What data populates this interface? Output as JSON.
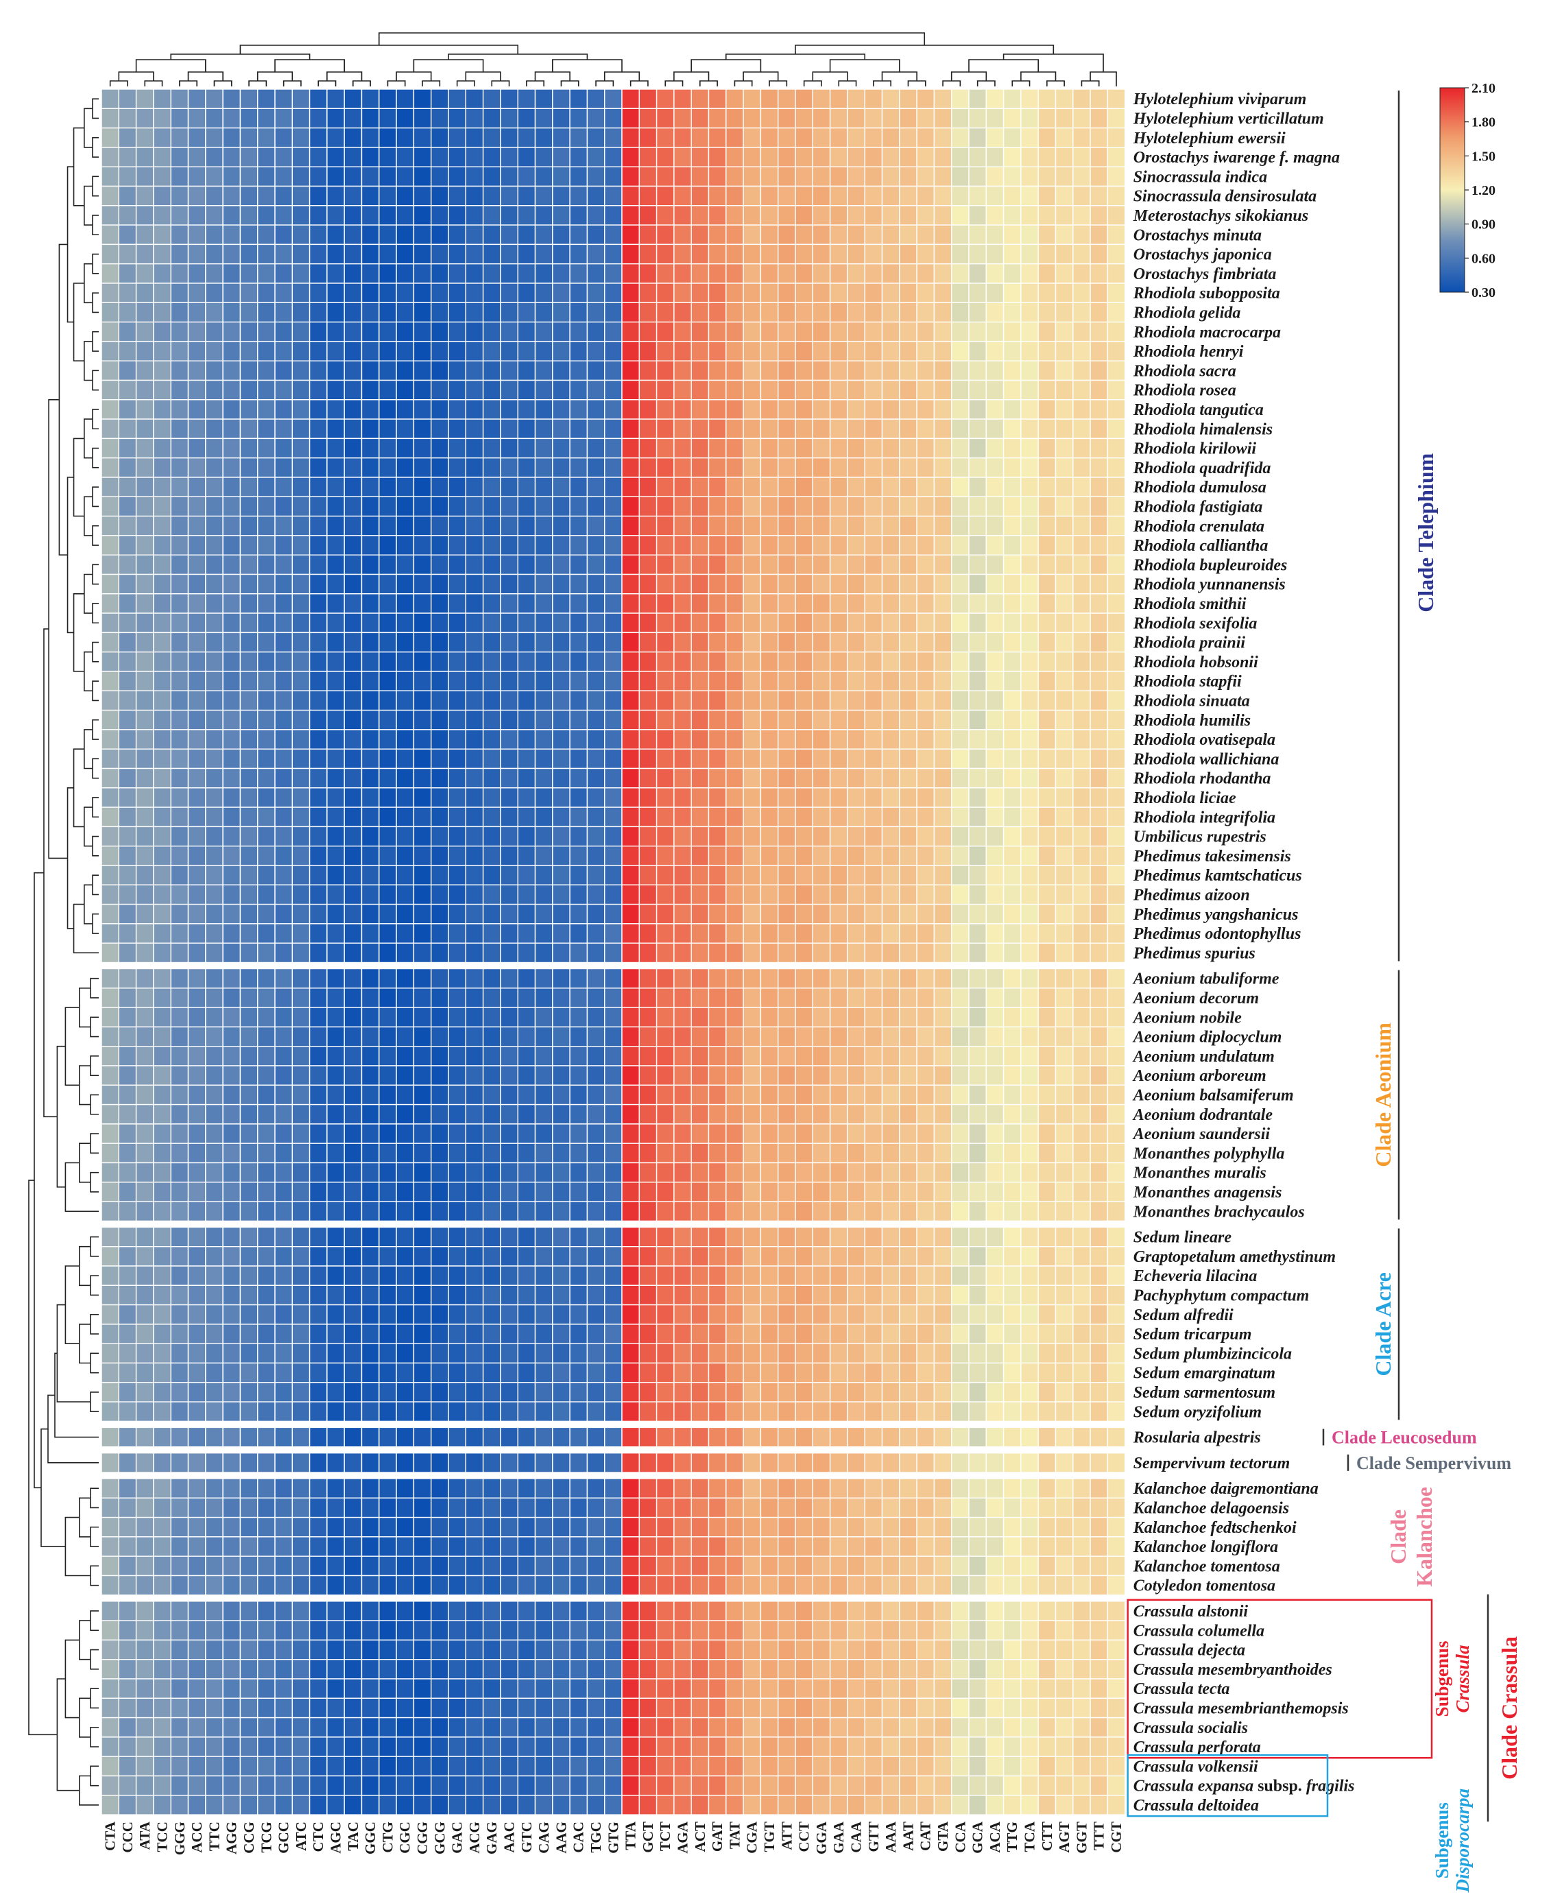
{
  "chart_data": {
    "type": "heatmap",
    "title": "",
    "colormap": {
      "min": 0.3,
      "max": 2.1,
      "stops": [
        "#0b4fb2",
        "#6f8fb8",
        "#f7efb6",
        "#f0a06e",
        "#e8252b"
      ],
      "ticks": [
        "2.10",
        "1.80",
        "1.50",
        "1.20",
        "0.90",
        "0.60",
        "0.30"
      ]
    },
    "columns": [
      "CTA",
      "CCC",
      "ATA",
      "TCC",
      "GGG",
      "ACC",
      "TTC",
      "AGG",
      "CCG",
      "TCG",
      "GCC",
      "ATC",
      "CTC",
      "AGC",
      "TAC",
      "GGC",
      "CTG",
      "CGC",
      "CGG",
      "GCG",
      "GAC",
      "ACG",
      "GAG",
      "AAC",
      "GTC",
      "CAG",
      "AAG",
      "CAC",
      "TGC",
      "GTG",
      "TTA",
      "GCT",
      "TCT",
      "AGA",
      "ACT",
      "GAT",
      "TAT",
      "CGA",
      "TGT",
      "ATT",
      "CCT",
      "GGA",
      "GAA",
      "CAA",
      "GTT",
      "AAA",
      "AAT",
      "CAT",
      "GTA",
      "CCA",
      "GCA",
      "ACA",
      "TTG",
      "TCA",
      "CTT",
      "AGT",
      "GGT",
      "TTT",
      "CGT"
    ],
    "column_rscu": [
      0.9,
      0.8,
      0.82,
      0.8,
      0.72,
      0.7,
      0.68,
      0.64,
      0.62,
      0.58,
      0.56,
      0.55,
      0.4,
      0.38,
      0.37,
      0.36,
      0.35,
      0.34,
      0.33,
      0.36,
      0.4,
      0.42,
      0.44,
      0.46,
      0.45,
      0.48,
      0.5,
      0.49,
      0.5,
      0.52,
      2.05,
      1.92,
      1.85,
      1.8,
      1.78,
      1.75,
      1.68,
      1.55,
      1.58,
      1.6,
      1.6,
      1.55,
      1.52,
      1.5,
      1.48,
      1.45,
      1.45,
      1.42,
      1.4,
      1.15,
      1.12,
      1.18,
      1.2,
      1.22,
      1.35,
      1.3,
      1.32,
      1.38,
      1.28
    ],
    "groups": [
      {
        "clade": "Clade Telephium",
        "color": "#2c3590",
        "species": [
          "Hylotelephium viviparum",
          "Hylotelephium verticillatum",
          "Hylotelephium ewersii",
          "Orostachys iwarenge f. magna",
          "Sinocrassula indica",
          "Sinocrassula densirosulata",
          "Meterostachys sikokianus",
          "Orostachys minuta",
          "Orostachys japonica",
          "Orostachys fimbriata",
          "Rhodiola subopposita",
          "Rhodiola gelida",
          "Rhodiola macrocarpa",
          "Rhodiola henryi",
          "Rhodiola sacra",
          "Rhodiola rosea",
          "Rhodiola tangutica",
          "Rhodiola himalensis",
          "Rhodiola kirilowii",
          "Rhodiola quadrifida",
          "Rhodiola dumulosa",
          "Rhodiola fastigiata",
          "Rhodiola crenulata",
          "Rhodiola calliantha",
          "Rhodiola bupleuroides",
          "Rhodiola yunnanensis",
          "Rhodiola smithii",
          "Rhodiola sexifolia",
          "Rhodiola prainii",
          "Rhodiola hobsonii",
          "Rhodiola stapfii",
          "Rhodiola sinuata",
          "Rhodiola humilis",
          "Rhodiola ovatisepala",
          "Rhodiola wallichiana",
          "Rhodiola rhodantha",
          "Rhodiola liciae",
          "Rhodiola integrifolia",
          "Umbilicus rupestris",
          "Phedimus takesimensis",
          "Phedimus kamtschaticus",
          "Phedimus aizoon",
          "Phedimus yangshanicus",
          "Phedimus odontophyllus",
          "Phedimus spurius"
        ]
      },
      {
        "clade": "Clade Aeonium",
        "color": "#f39a2a",
        "species": [
          "Aeonium tabuliforme",
          "Aeonium decorum",
          "Aeonium nobile",
          "Aeonium diplocyclum",
          "Aeonium undulatum",
          "Aeonium arboreum",
          "Aeonium balsamiferum",
          "Aeonium dodrantale",
          "Aeonium saundersii",
          "Monanthes polyphylla",
          "Monanthes muralis",
          "Monanthes anagensis",
          "Monanthes brachycaulos"
        ]
      },
      {
        "clade": "Clade Acre",
        "color": "#21a3e0",
        "species": [
          "Sedum lineare",
          "Graptopetalum amethystinum",
          "Echeveria lilacina",
          "Pachyphytum compactum",
          "Sedum alfredii",
          "Sedum tricarpum",
          "Sedum plumbizincicola",
          "Sedum emarginatum",
          "Sedum sarmentosum",
          "Sedum oryzifolium"
        ]
      },
      {
        "clade": "Clade Leucosedum",
        "color": "#d9488a",
        "species": [
          "Rosularia alpestris"
        ]
      },
      {
        "clade": "Clade Sempervivum",
        "color": "#5f6b78",
        "species": [
          "Sempervivum tectorum"
        ]
      },
      {
        "clade_lines": [
          "Clade",
          "Kalanchoe"
        ],
        "color": "#ee7f98",
        "species": [
          "Kalanchoe daigremontiana",
          "Kalanchoe delagoensis",
          "Kalanchoe fedtschenkoi",
          "Kalanchoe longiflora",
          "Kalanchoe tomentosa",
          "Cotyledon tomentosa"
        ]
      },
      {
        "clade": "Clade Crassula",
        "color": "#e8202e",
        "species": [
          "Crassula alstonii",
          "Crassula columella",
          "Crassula dejecta",
          "Crassula mesembryanthoides",
          "Crassula tecta",
          "Crassula mesembrianthemopsis",
          "Crassula socialis",
          "Crassula perforata",
          "Crassula volkensii",
          "Crassula expansa subsp. fragilis",
          "Crassula deltoidea"
        ]
      }
    ],
    "expansa_parts": [
      "Crassula expansa",
      " subsp. ",
      "fragilis"
    ],
    "subgenus_crassula": {
      "lines": [
        "Subgenus",
        "Crassula"
      ],
      "color": "#e8202e"
    },
    "subgenus_disporocarpa": {
      "lines": [
        "Subgenus",
        "Disporocarpa"
      ],
      "color": "#21a3e0"
    }
  }
}
